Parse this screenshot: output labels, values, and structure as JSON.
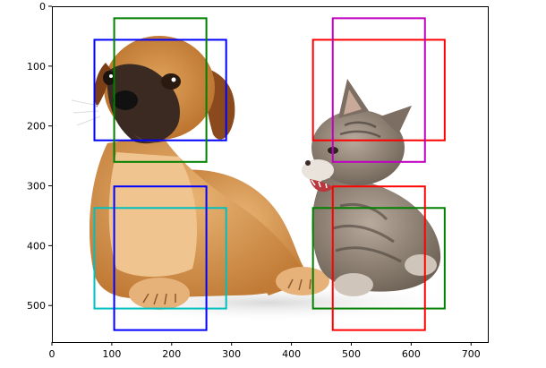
{
  "chart_data": {
    "type": "image",
    "image": {
      "description": "puppy and kitten photo",
      "width": 728,
      "height": 561
    },
    "xlim": [
      0,
      728
    ],
    "ylim": [
      561,
      0
    ],
    "xticks": [
      0,
      100,
      200,
      300,
      400,
      500,
      600,
      700
    ],
    "yticks": [
      0,
      100,
      200,
      300,
      400,
      500
    ],
    "grid": false,
    "boxes": [
      {
        "xmin": 71,
        "ymin": 56,
        "xmax": 291,
        "ymax": 224,
        "color": "#0000ff"
      },
      {
        "xmin": 104,
        "ymin": 20,
        "xmax": 258,
        "ymax": 260,
        "color": "#008000"
      },
      {
        "xmin": 436,
        "ymin": 56,
        "xmax": 656,
        "ymax": 224,
        "color": "#ff0000"
      },
      {
        "xmin": 469,
        "ymin": 20,
        "xmax": 623,
        "ymax": 260,
        "color": "#bf00bf"
      },
      {
        "xmin": 71,
        "ymin": 337,
        "xmax": 291,
        "ymax": 505,
        "color": "#00bfbf"
      },
      {
        "xmin": 104,
        "ymin": 301,
        "xmax": 258,
        "ymax": 541,
        "color": "#0000ff"
      },
      {
        "xmin": 436,
        "ymin": 337,
        "xmax": 656,
        "ymax": 505,
        "color": "#008000"
      },
      {
        "xmin": 469,
        "ymin": 301,
        "xmax": 623,
        "ymax": 541,
        "color": "#ff0000"
      }
    ]
  }
}
